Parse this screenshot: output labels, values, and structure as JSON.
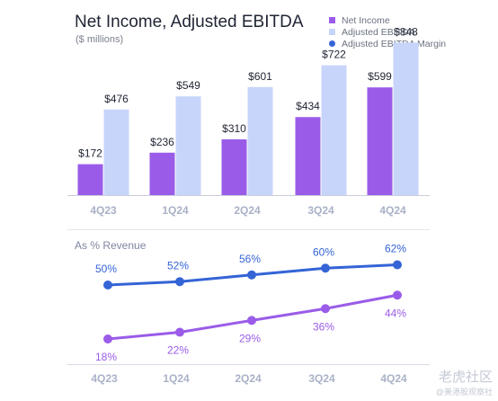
{
  "header": {
    "title": "Net Income, Adjusted EBITDA",
    "subtitle": "($ millions)"
  },
  "legend": {
    "items": [
      {
        "label": "Net Income",
        "color": "#9a5ce8",
        "shape": "square"
      },
      {
        "label": "Adjusted EBITDA",
        "color": "#c7d5fb",
        "shape": "square"
      },
      {
        "label": "Adjusted EBITDA Margin",
        "color": "#3464d6",
        "shape": "circle"
      }
    ]
  },
  "line_section": {
    "title": "As % Revenue"
  },
  "watermark": {
    "line1": "老虎社区",
    "line2": "@美港股观察社"
  },
  "chart_data": [
    {
      "type": "bar",
      "title": "Net Income, Adjusted EBITDA",
      "subtitle": "($ millions)",
      "categories": [
        "4Q23",
        "1Q24",
        "2Q24",
        "3Q24",
        "4Q24"
      ],
      "series": [
        {
          "name": "Net Income",
          "color": "#9a5ce8",
          "values": [
            172,
            236,
            310,
            434,
            599
          ],
          "labels": [
            "$172",
            "$236",
            "$310",
            "$434",
            "$599"
          ]
        },
        {
          "name": "Adjusted EBITDA",
          "color": "#c7d5fb",
          "values": [
            476,
            549,
            601,
            722,
            848
          ],
          "labels": [
            "$476",
            "$549",
            "$601",
            "$722",
            "$848"
          ]
        }
      ],
      "ylim": [
        0,
        1000
      ],
      "grid": false
    },
    {
      "type": "line",
      "title": "As % Revenue",
      "categories": [
        "4Q23",
        "1Q24",
        "2Q24",
        "3Q24",
        "4Q24"
      ],
      "series": [
        {
          "name": "Adjusted EBITDA Margin",
          "color": "#3464d6",
          "values": [
            50,
            52,
            56,
            60,
            62
          ],
          "labels": [
            "50%",
            "52%",
            "56%",
            "60%",
            "62%"
          ]
        },
        {
          "name": "Net Income",
          "color": "#9a5ce8",
          "values": [
            18,
            22,
            29,
            36,
            44
          ],
          "labels": [
            "18%",
            "22%",
            "29%",
            "36%",
            "44%"
          ]
        }
      ],
      "ylim": [
        0,
        100
      ],
      "grid": false
    }
  ]
}
